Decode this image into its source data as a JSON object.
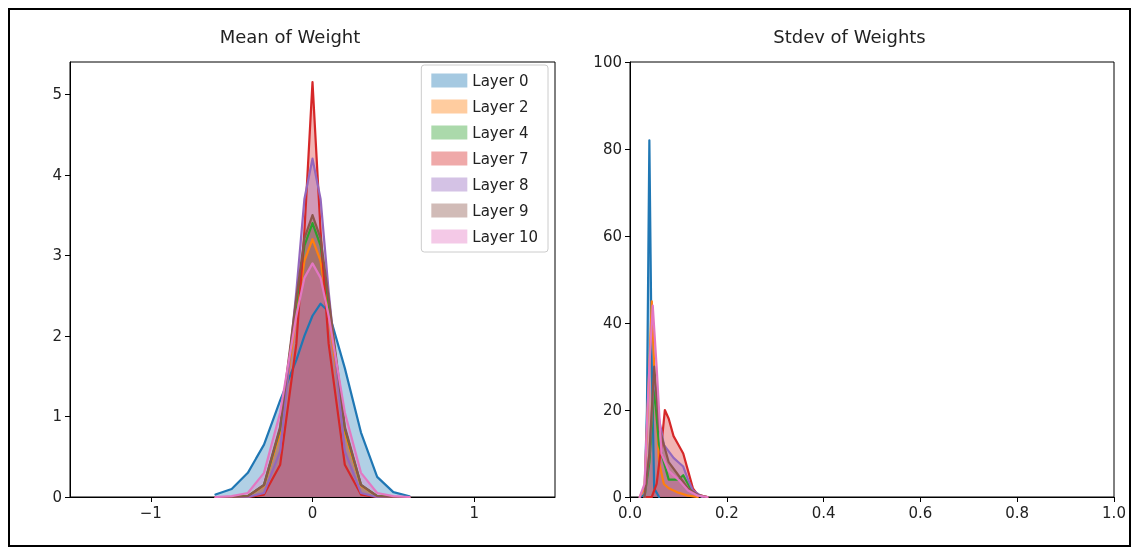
{
  "chart_data": [
    {
      "type": "area",
      "title": "Mean of Weight",
      "xlim": [
        -1.5,
        1.5
      ],
      "xticks": [
        {
          "value": -1,
          "label": "−1"
        },
        0,
        1
      ],
      "ylim": [
        0,
        5.4
      ],
      "yticks": [
        0,
        1,
        2,
        3,
        4,
        5
      ],
      "grid": false,
      "legend": "top right",
      "marker": "none",
      "line_style": "solid",
      "x": [
        -0.6,
        -0.5,
        -0.4,
        -0.3,
        -0.2,
        -0.1,
        -0.05,
        0,
        0.05,
        0.1,
        0.2,
        0.3,
        0.4,
        0.5,
        0.6
      ],
      "series": [
        {
          "name": "Layer 0",
          "color": "#1f77b4",
          "values": [
            0.03,
            0.1,
            0.3,
            0.65,
            1.2,
            1.7,
            2.0,
            2.25,
            2.4,
            2.3,
            1.6,
            0.8,
            0.25,
            0.06,
            0.01
          ]
        },
        {
          "name": "Layer 2",
          "color": "#ff7f0e",
          "values": [
            0,
            0,
            0.01,
            0.14,
            0.8,
            2.26,
            2.93,
            3.2,
            2.93,
            2.26,
            0.8,
            0.14,
            0.01,
            0,
            0
          ]
        },
        {
          "name": "Layer 4",
          "color": "#2ca02c",
          "values": [
            0,
            0,
            0.01,
            0.15,
            0.85,
            2.4,
            3.12,
            3.4,
            3.12,
            2.4,
            0.85,
            0.15,
            0.01,
            0,
            0
          ]
        },
        {
          "name": "Layer 7",
          "color": "#d62728",
          "values": [
            0,
            0,
            0,
            0.03,
            0.4,
            1.9,
            3.3,
            5.15,
            3.3,
            1.9,
            0.4,
            0.03,
            0,
            0,
            0
          ]
        },
        {
          "name": "Layer 8",
          "color": "#9467bd",
          "values": [
            0,
            0,
            0,
            0.05,
            0.57,
            2.55,
            3.7,
            4.2,
            3.7,
            2.55,
            0.57,
            0.05,
            0,
            0,
            0
          ]
        },
        {
          "name": "Layer 9",
          "color": "#8c564b",
          "values": [
            0,
            0,
            0.01,
            0.15,
            0.87,
            2.47,
            3.21,
            3.5,
            3.21,
            2.47,
            0.87,
            0.15,
            0.01,
            0,
            0
          ]
        },
        {
          "name": "Layer 10",
          "color": "#e377c2",
          "values": [
            0,
            0.01,
            0.05,
            0.3,
            1.05,
            2.25,
            2.72,
            2.9,
            2.72,
            2.25,
            1.05,
            0.3,
            0.05,
            0.01,
            0
          ]
        }
      ]
    },
    {
      "type": "area",
      "title": "Stdev of Weights",
      "xlim": [
        0,
        1
      ],
      "xticks": [
        {
          "value": 0,
          "label": "0.0"
        },
        0.2,
        0.4,
        0.6,
        0.8,
        {
          "value": 1,
          "label": "1.0"
        }
      ],
      "ylim": [
        0,
        100
      ],
      "yticks": [
        0,
        20,
        40,
        60,
        80,
        100
      ],
      "grid": false,
      "legend": false,
      "marker": "none",
      "line_style": "solid",
      "series": [
        {
          "color": "#1f77b4",
          "x": [
            0.02,
            0.03,
            0.035,
            0.04,
            0.045,
            0.05,
            0.06
          ],
          "values": [
            0,
            0.5,
            20,
            82,
            30,
            2,
            0
          ]
        },
        {
          "color": "#ff7f0e",
          "x": [
            0.02,
            0.03,
            0.04,
            0.045,
            0.05,
            0.06,
            0.07,
            0.08,
            0.09,
            0.1,
            0.12,
            0.14
          ],
          "values": [
            0,
            2,
            30,
            45,
            30,
            8,
            3,
            2,
            1.5,
            1,
            0.3,
            0
          ]
        },
        {
          "color": "#2ca02c",
          "x": [
            0.03,
            0.04,
            0.05,
            0.06,
            0.08,
            0.1,
            0.11,
            0.12,
            0.13,
            0.15
          ],
          "values": [
            0,
            8,
            25,
            12,
            4,
            4,
            5,
            3,
            1,
            0
          ]
        },
        {
          "color": "#d62728",
          "x": [
            0.03,
            0.045,
            0.055,
            0.065,
            0.072,
            0.08,
            0.09,
            0.1,
            0.11,
            0.12,
            0.13,
            0.14,
            0.16
          ],
          "values": [
            0,
            0,
            3,
            12,
            20,
            18,
            14,
            12,
            10,
            6,
            2,
            0.5,
            0
          ]
        },
        {
          "color": "#9467bd",
          "x": [
            0.03,
            0.04,
            0.05,
            0.06,
            0.07,
            0.09,
            0.1,
            0.11,
            0.12,
            0.13,
            0.15
          ],
          "values": [
            0,
            10,
            28,
            18,
            12,
            9,
            8,
            7,
            4,
            1.5,
            0
          ]
        },
        {
          "color": "#8c564b",
          "x": [
            0.03,
            0.04,
            0.05,
            0.06,
            0.08,
            0.1,
            0.12,
            0.14,
            0.16
          ],
          "values": [
            0,
            10,
            30,
            16,
            8,
            5,
            2,
            0.5,
            0
          ]
        },
        {
          "color": "#e377c2",
          "x": [
            0.02,
            0.03,
            0.04,
            0.047,
            0.055,
            0.065,
            0.08,
            0.1,
            0.12,
            0.14,
            0.16
          ],
          "values": [
            0,
            3,
            30,
            44,
            30,
            10,
            6,
            4,
            1.5,
            0.3,
            0
          ]
        }
      ]
    }
  ]
}
